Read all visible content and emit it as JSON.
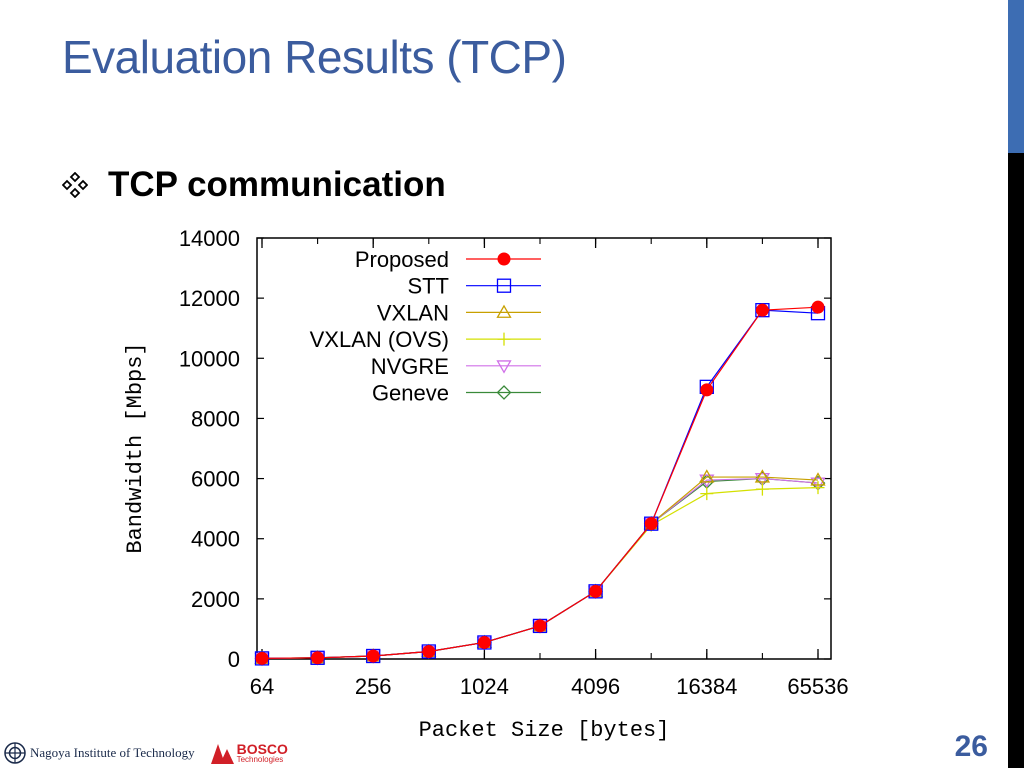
{
  "slide": {
    "title": "Evaluation Results (TCP)",
    "bullet": "TCP communication",
    "page_number": "26",
    "accent_color": "#3b5c9e"
  },
  "footer": {
    "institute": "Nagoya Institute of Technology",
    "company": "BOSCO",
    "company_sub": "Technologies"
  },
  "chart_data": {
    "type": "line",
    "title": "",
    "xlabel": "Packet Size [bytes]",
    "ylabel": "Bandwidth [Mbps]",
    "x_scale": "log2",
    "x": [
      64,
      128,
      256,
      512,
      1024,
      2048,
      4096,
      8192,
      16384,
      32768,
      65536
    ],
    "x_ticks": [
      64,
      256,
      1024,
      4096,
      16384,
      65536
    ],
    "ylim": [
      0,
      14000
    ],
    "y_ticks": [
      0,
      2000,
      4000,
      6000,
      8000,
      10000,
      12000,
      14000
    ],
    "grid": false,
    "legend_position": "top-left",
    "series": [
      {
        "name": "Proposed",
        "color": "#ff0000",
        "marker": "filled-circle",
        "values": [
          20,
          40,
          100,
          250,
          550,
          1100,
          2250,
          4500,
          8950,
          11600,
          11700
        ]
      },
      {
        "name": "STT",
        "color": "#0000ff",
        "marker": "square",
        "values": [
          20,
          40,
          100,
          250,
          550,
          1100,
          2250,
          4500,
          9050,
          11600,
          11500
        ]
      },
      {
        "name": "VXLAN",
        "color": "#c8a000",
        "marker": "triangle-up",
        "values": [
          20,
          40,
          100,
          250,
          550,
          1100,
          2250,
          4500,
          6050,
          6050,
          5950
        ]
      },
      {
        "name": "VXLAN (OVS)",
        "color": "#d4e000",
        "marker": "plus",
        "values": [
          20,
          40,
          100,
          250,
          550,
          1100,
          2250,
          4450,
          5500,
          5650,
          5700
        ]
      },
      {
        "name": "NVGRE",
        "color": "#d070e8",
        "marker": "triangle-down",
        "values": [
          20,
          40,
          100,
          250,
          550,
          1100,
          2250,
          4500,
          5950,
          6000,
          5850
        ]
      },
      {
        "name": "Geneve",
        "color": "#3a8a3a",
        "marker": "diamond",
        "values": [
          20,
          40,
          100,
          250,
          550,
          1100,
          2250,
          4500,
          5900,
          6000,
          5850
        ]
      }
    ]
  }
}
